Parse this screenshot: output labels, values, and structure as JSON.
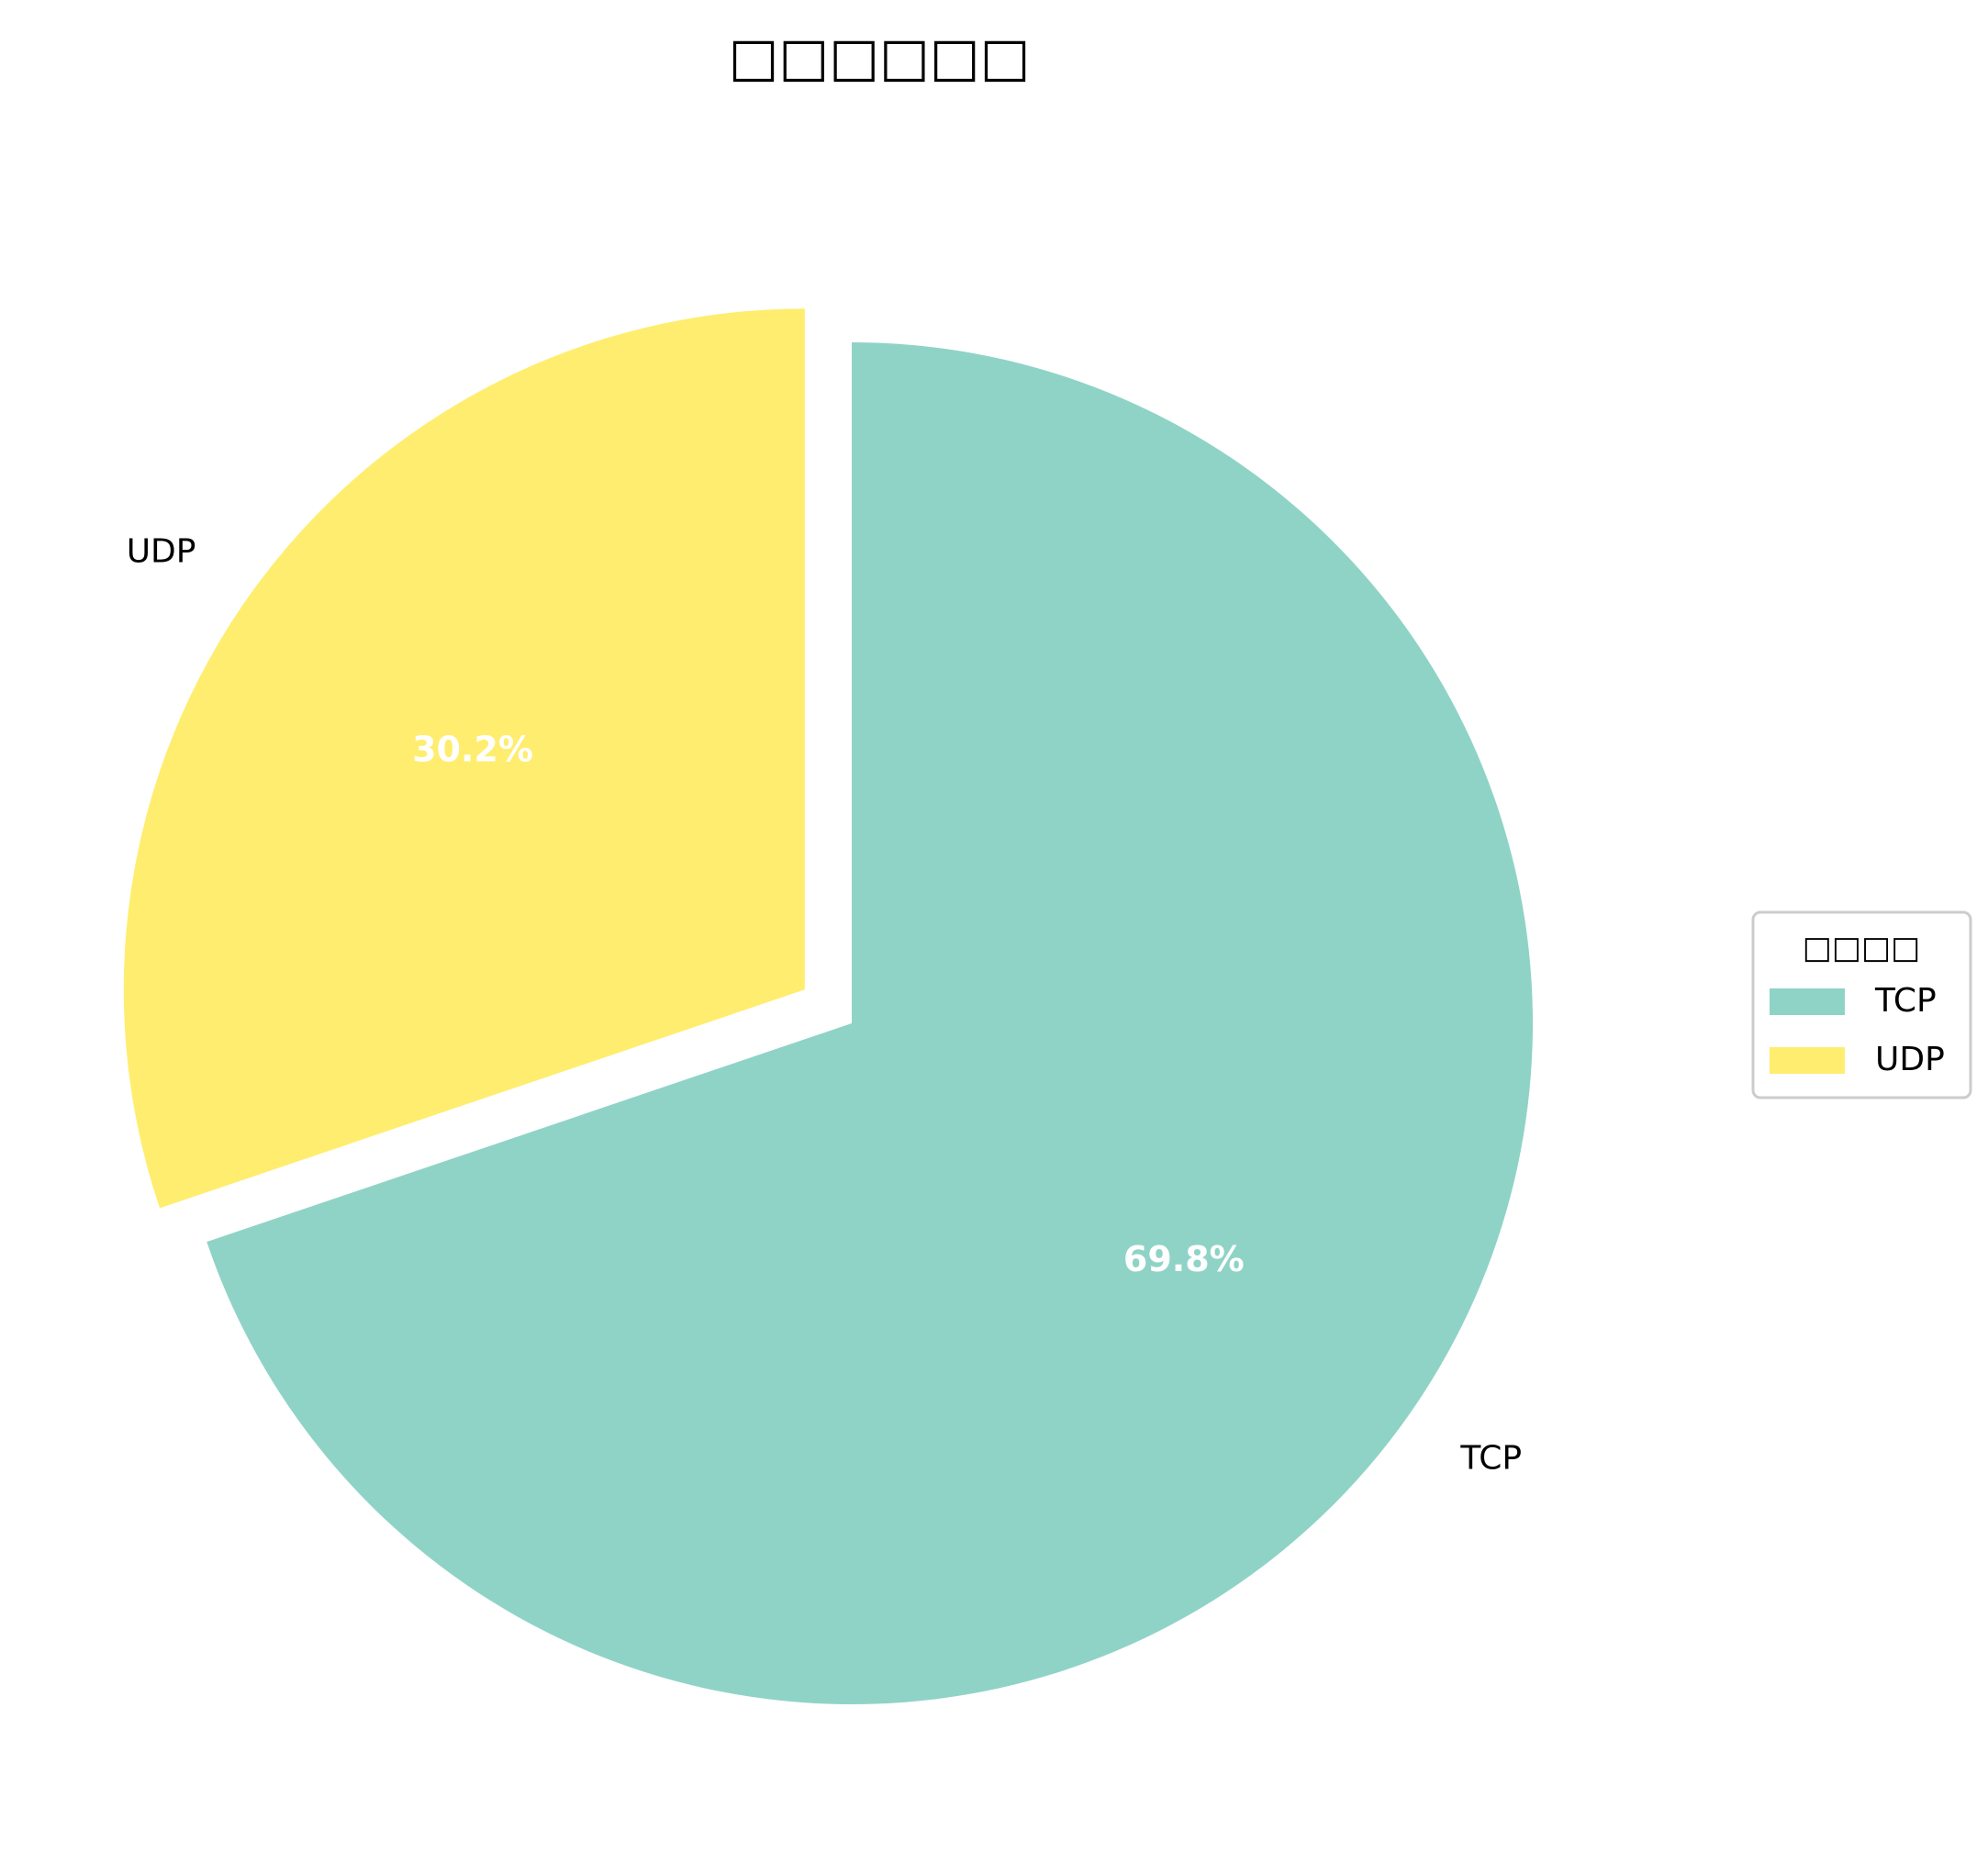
{
  "chart_data": {
    "type": "pie",
    "title": "□□□□□□",
    "slices": [
      {
        "label": "TCP",
        "value": 69.8,
        "pct_label": "69.8%",
        "color": "#8fd3c7",
        "explode": false
      },
      {
        "label": "UDP",
        "value": 30.2,
        "pct_label": "30.2%",
        "color": "#ffed6f",
        "explode": true
      }
    ],
    "start_angle_deg": 90,
    "direction": "clockwise",
    "legend": {
      "title": "□□□□",
      "placement": "right",
      "entries": [
        "TCP",
        "UDP"
      ]
    }
  }
}
